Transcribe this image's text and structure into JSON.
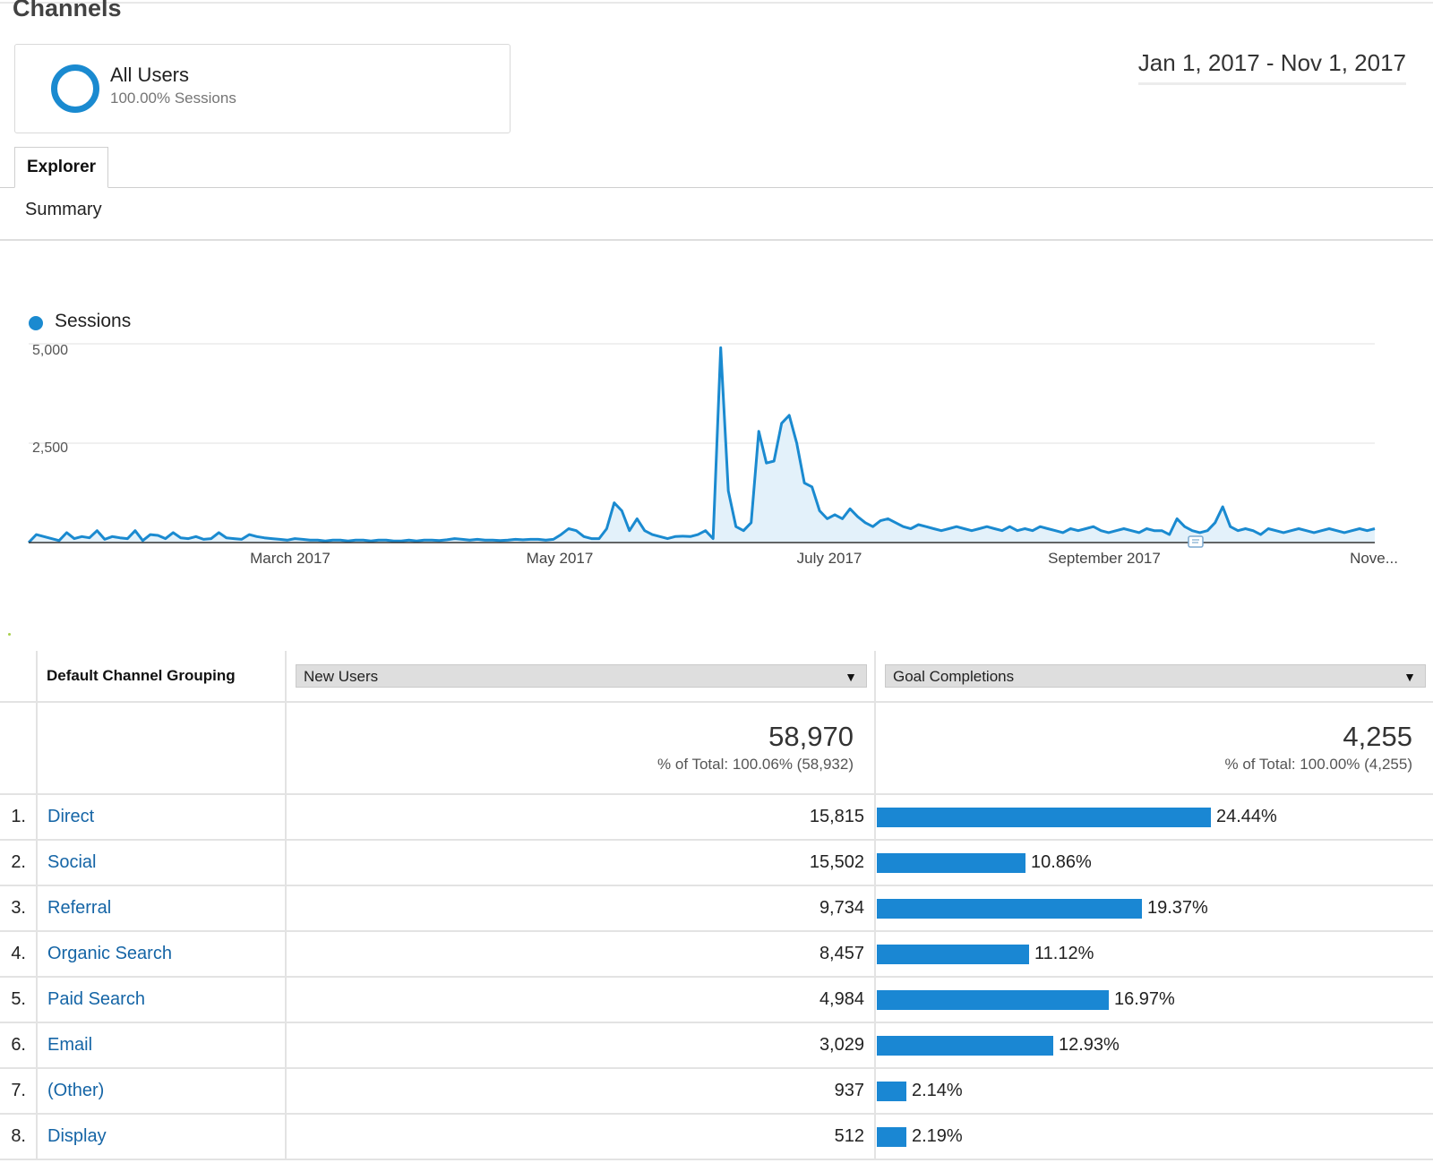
{
  "page": {
    "title": "Channels"
  },
  "segment": {
    "name": "All Users",
    "detail": "100.00% Sessions"
  },
  "date_range": "Jan 1, 2017 - Nov 1, 2017",
  "tabs": {
    "explorer": "Explorer",
    "summary": "Summary"
  },
  "chart_data": {
    "type": "line",
    "series": [
      {
        "name": "Sessions",
        "values": [
          0,
          200,
          150,
          100,
          50,
          250,
          100,
          150,
          120,
          300,
          80,
          150,
          120,
          100,
          300,
          50,
          200,
          180,
          100,
          250,
          120,
          100,
          150,
          80,
          100,
          250,
          120,
          100,
          80,
          200,
          150,
          120,
          100,
          80,
          60,
          100,
          80,
          60,
          60,
          40,
          60,
          60,
          40,
          60,
          60,
          40,
          60,
          60,
          40,
          40,
          60,
          40,
          60,
          60,
          50,
          70,
          100,
          80,
          60,
          80,
          60,
          60,
          50,
          60,
          80,
          70,
          80,
          80,
          60,
          80,
          200,
          350,
          300,
          150,
          100,
          100,
          350,
          1000,
          800,
          300,
          600,
          300,
          200,
          150,
          100,
          150,
          160,
          150,
          200,
          300,
          100,
          4900,
          1300,
          400,
          300,
          500,
          2800,
          2000,
          2050,
          3000,
          3200,
          2500,
          1500,
          1400,
          800,
          600,
          700,
          600,
          850,
          650,
          500,
          400,
          550,
          600,
          500,
          400,
          350,
          450,
          400,
          350,
          300,
          350,
          400,
          350,
          300,
          350,
          400,
          350,
          300,
          400,
          300,
          350,
          300,
          400,
          350,
          300,
          250,
          350,
          300,
          350,
          400,
          300,
          250,
          300,
          350,
          300,
          250,
          350,
          300,
          300,
          200,
          600,
          400,
          300,
          250,
          300,
          500,
          900,
          400,
          300,
          350,
          300,
          200,
          350,
          300,
          250,
          300,
          350,
          300,
          250,
          300,
          350,
          300,
          250,
          300,
          350,
          300,
          350
        ],
        "color": "#1a8ad0"
      }
    ],
    "x_tick_labels": [
      "March 2017",
      "May 2017",
      "July 2017",
      "September 2017",
      "Nove..."
    ],
    "y_ticks": [
      "5,000",
      "2,500"
    ],
    "ylim": [
      0,
      5000
    ],
    "grid": true,
    "legend": "top-left",
    "annotation_marker": "September 2017"
  },
  "table": {
    "dimension_header": "Default Channel Grouping",
    "metric1": {
      "label": "New Users",
      "total": "58,970",
      "total_note": "% of Total: 100.06% (58,932)"
    },
    "metric2": {
      "label": "Goal Completions",
      "total": "4,255",
      "total_note": "% of Total: 100.00% (4,255)"
    },
    "bar_color": "#1a87d3",
    "rows": [
      {
        "rank": "1.",
        "channel": "Direct",
        "new_users": "15,815",
        "goal_pct": "24.44%",
        "goal_value": 24.44
      },
      {
        "rank": "2.",
        "channel": "Social",
        "new_users": "15,502",
        "goal_pct": "10.86%",
        "goal_value": 10.86
      },
      {
        "rank": "3.",
        "channel": "Referral",
        "new_users": "9,734",
        "goal_pct": "19.37%",
        "goal_value": 19.37
      },
      {
        "rank": "4.",
        "channel": "Organic Search",
        "new_users": "8,457",
        "goal_pct": "11.12%",
        "goal_value": 11.12
      },
      {
        "rank": "5.",
        "channel": "Paid Search",
        "new_users": "4,984",
        "goal_pct": "16.97%",
        "goal_value": 16.97
      },
      {
        "rank": "6.",
        "channel": "Email",
        "new_users": "3,029",
        "goal_pct": "12.93%",
        "goal_value": 12.93
      },
      {
        "rank": "7.",
        "channel": "(Other)",
        "new_users": "937",
        "goal_pct": "2.14%",
        "goal_value": 2.14
      },
      {
        "rank": "8.",
        "channel": "Display",
        "new_users": "512",
        "goal_pct": "2.19%",
        "goal_value": 2.19
      }
    ]
  }
}
